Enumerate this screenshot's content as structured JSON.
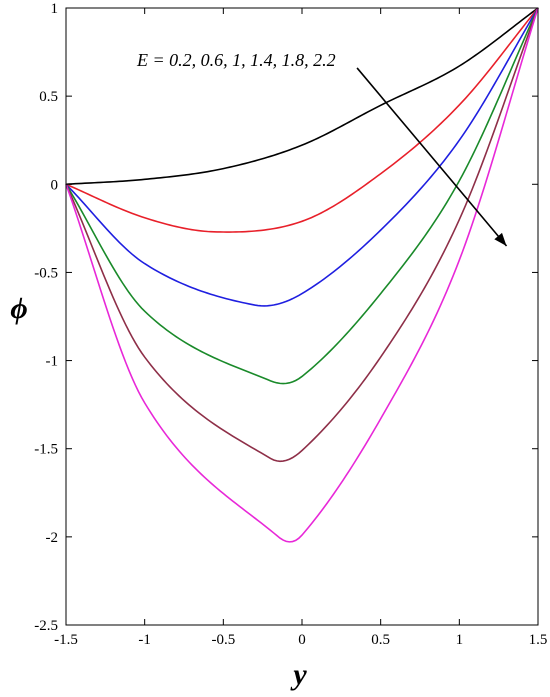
{
  "chart_data": {
    "type": "line",
    "title": "",
    "xlabel": "y",
    "ylabel": "ϕ",
    "xlim": [
      -1.5,
      1.5
    ],
    "ylim": [
      -2.5,
      1
    ],
    "xticks": [
      -1.5,
      -1,
      -0.5,
      0,
      0.5,
      1,
      1.5
    ],
    "xtick_labels": [
      "-1.5",
      "-1",
      "-0.5",
      "0",
      "0.5",
      "1",
      "1.5"
    ],
    "yticks": [
      -2.5,
      -2,
      -1.5,
      -1,
      -0.5,
      0,
      0.5,
      1
    ],
    "ytick_labels": [
      "-2.5",
      "-2",
      "-1.5",
      "-1",
      "-0.5",
      "0",
      "0.5",
      "1"
    ],
    "grid": false,
    "annotation": {
      "text": "E = 0.2, 0.6, 1, 1.4, 1.8, 2.2",
      "arrow_from": [
        0.35,
        0.66
      ],
      "arrow_to": [
        1.3,
        -0.35
      ]
    },
    "series": [
      {
        "color": "#000000",
        "values": [
          [
            -1.5,
            0
          ],
          [
            -1.0,
            0.028
          ],
          [
            -0.5,
            0.089
          ],
          [
            0,
            0.222
          ],
          [
            0.5,
            0.448
          ],
          [
            1.0,
            0.671
          ],
          [
            1.5,
            1
          ]
        ]
      },
      {
        "color": "#e8202a",
        "values": [
          [
            -1.5,
            0
          ],
          [
            -1.0,
            -0.19
          ],
          [
            -0.55,
            -0.27
          ],
          [
            0,
            -0.21
          ],
          [
            0.5,
            0.06
          ],
          [
            1.0,
            0.45
          ],
          [
            1.5,
            1
          ]
        ]
      },
      {
        "color": "#1f1fe0",
        "values": [
          [
            -1.5,
            0
          ],
          [
            -1.0,
            -0.45
          ],
          [
            -0.3,
            -0.685
          ],
          [
            0,
            -0.62
          ],
          [
            0.5,
            -0.26
          ],
          [
            1.0,
            0.25
          ],
          [
            1.5,
            1
          ]
        ]
      },
      {
        "color": "#1a8a2a",
        "values": [
          [
            -1.5,
            0
          ],
          [
            -1.0,
            -0.72
          ],
          [
            -0.2,
            -1.115
          ],
          [
            0,
            -1.09
          ],
          [
            0.5,
            -0.62
          ],
          [
            1.0,
            0.02
          ],
          [
            1.5,
            1
          ]
        ]
      },
      {
        "color": "#8e2f48",
        "values": [
          [
            -1.5,
            0
          ],
          [
            -1.0,
            -0.98
          ],
          [
            -0.2,
            -1.555
          ],
          [
            0,
            -1.51
          ],
          [
            0.5,
            -0.98
          ],
          [
            1.0,
            -0.2
          ],
          [
            1.5,
            1
          ]
        ]
      },
      {
        "color": "#e828d8",
        "values": [
          [
            -1.5,
            0
          ],
          [
            -1.0,
            -1.24
          ],
          [
            -0.15,
            -2.0
          ],
          [
            0,
            -1.99
          ],
          [
            0.5,
            -1.33
          ],
          [
            1.0,
            -0.43
          ],
          [
            1.5,
            1
          ]
        ]
      }
    ]
  }
}
